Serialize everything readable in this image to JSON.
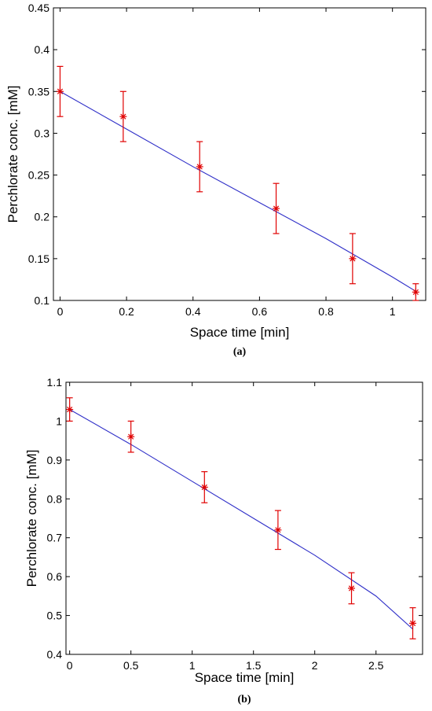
{
  "chart_data": [
    {
      "type": "scatter",
      "panel": "(a)",
      "xlabel": "Space time [min]",
      "ylabel": "Perchlorate conc. [mM]",
      "xlim": [
        -0.02,
        1.1
      ],
      "ylim": [
        0.1,
        0.45
      ],
      "xticks": [
        0,
        0.2,
        0.4,
        0.6,
        0.8,
        1
      ],
      "xtick_labels": [
        "0",
        "0.2",
        "0.4",
        "0.6",
        "0.8",
        "1"
      ],
      "yticks": [
        0.1,
        0.15,
        0.2,
        0.25,
        0.3,
        0.35,
        0.4,
        0.45
      ],
      "ytick_labels": [
        "0.1",
        "0.15",
        "0.2",
        "0.25",
        "0.3",
        "0.35",
        "0.4",
        "0.45"
      ],
      "grid": false,
      "series": [
        {
          "kind": "measured",
          "marker": "*",
          "color": "#e00000",
          "x": [
            0,
            0.19,
            0.42,
            0.65,
            0.88,
            1.07
          ],
          "y": [
            0.35,
            0.32,
            0.26,
            0.21,
            0.15,
            0.11
          ],
          "err_low": [
            0.32,
            0.29,
            0.23,
            0.18,
            0.12,
            0.1
          ],
          "err_high": [
            0.38,
            0.35,
            0.29,
            0.24,
            0.18,
            0.12
          ]
        },
        {
          "kind": "fit",
          "color": "#2f2fc8",
          "x": [
            0,
            0.2,
            0.4,
            0.6,
            0.8,
            1.0,
            1.07
          ],
          "y": [
            0.35,
            0.305,
            0.26,
            0.217,
            0.174,
            0.128,
            0.111
          ]
        }
      ]
    },
    {
      "type": "scatter",
      "panel": "(b)",
      "xlabel": "Space time [min]",
      "ylabel": "Perchlorate conc. [mM]",
      "xlim": [
        -0.03,
        2.88
      ],
      "ylim": [
        0.4,
        1.1
      ],
      "xticks": [
        0,
        0.5,
        1,
        1.5,
        2,
        2.5
      ],
      "xtick_labels": [
        "0",
        "0.5",
        "1",
        "1.5",
        "2",
        "2.5"
      ],
      "yticks": [
        0.4,
        0.5,
        0.6,
        0.7,
        0.8,
        0.9,
        1.0,
        1.1
      ],
      "ytick_labels": [
        "0.4",
        "0.5",
        "0.6",
        "0.7",
        "0.8",
        "0.9",
        "1",
        "1.1"
      ],
      "grid": false,
      "series": [
        {
          "kind": "measured",
          "marker": "*",
          "color": "#e00000",
          "x": [
            0,
            0.5,
            1.1,
            1.7,
            2.3,
            2.8
          ],
          "y": [
            1.03,
            0.96,
            0.83,
            0.72,
            0.57,
            0.48
          ],
          "err_low": [
            1.0,
            0.92,
            0.79,
            0.67,
            0.53,
            0.44
          ],
          "err_high": [
            1.06,
            1.0,
            0.87,
            0.77,
            0.61,
            0.52
          ]
        },
        {
          "kind": "fit",
          "color": "#2f2fc8",
          "x": [
            0,
            0.5,
            1.0,
            1.5,
            2.0,
            2.5,
            2.8
          ],
          "y": [
            1.03,
            0.94,
            0.845,
            0.75,
            0.655,
            0.55,
            0.465
          ]
        }
      ]
    }
  ]
}
